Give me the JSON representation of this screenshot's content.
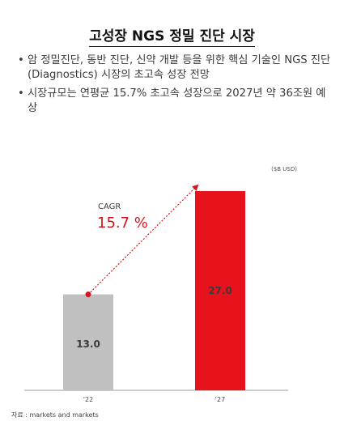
{
  "title": "고성장 NGS 정밀 진단 시장",
  "bullets": [
    "암 정밀진단, 동반 진단, 신약 개발 등을 위한 핵심 기술인 NGS 진단 (Diagnostics) 시장의 초고속 성장 전망",
    "시장규모는 연평균 15.7% 초고속 성장으로 2027년 약 36조원 예상"
  ],
  "bullet_marker": "•",
  "unit_label": "($B USD)",
  "source": "자료 : markets and markets",
  "chart_data": {
    "type": "bar",
    "categories": [
      "'22",
      "'27"
    ],
    "values": [
      13.0,
      27.0
    ],
    "value_labels": [
      "13.0",
      "27.0"
    ],
    "ylim": [
      0,
      30
    ],
    "colors": [
      "#c0c0c0",
      "#e8121c"
    ],
    "annotation": {
      "label": "CAGR",
      "value": "15.7 %",
      "color": "#d0161e"
    }
  }
}
